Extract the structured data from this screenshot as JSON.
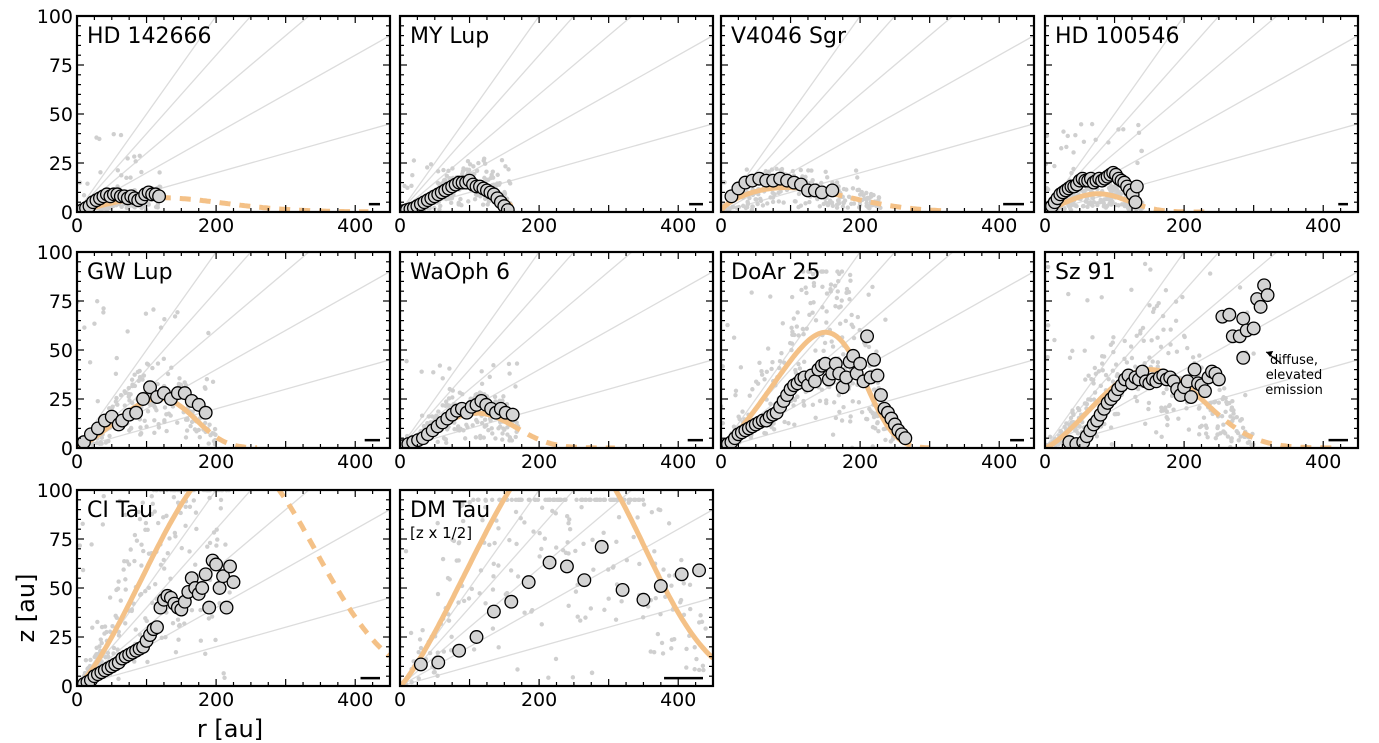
{
  "figure": {
    "xlabel": "r [au]",
    "ylabel": "z [au]",
    "x_ticks": [
      0,
      200,
      400
    ],
    "y_ticks": [
      0,
      25,
      50,
      75,
      100
    ],
    "xlim": [
      0,
      450
    ],
    "ylim": [
      0,
      100
    ],
    "grid": false,
    "reference_line_slopes": [
      0.1,
      0.2,
      0.3,
      0.4,
      0.5
    ]
  },
  "colors": {
    "fit": "#f4c187",
    "points_fill": "#d4d4d4",
    "background_points": "#cfcfcf",
    "reference_lines": "#dcdcdc"
  },
  "annotations": {
    "sz91_arrow_text": [
      "diffuse,",
      "elevated",
      "emission"
    ]
  },
  "chart_data": [
    {
      "type": "scatter",
      "name": "HD 142666",
      "note": "",
      "scalebar_au": 16,
      "fit": {
        "z0": 10,
        "phi": 1.0,
        "Rtaper": 170,
        "psi": 2.0,
        "solid_max_r": 120,
        "dashed_max_r": 420
      },
      "points": [
        [
          8,
          1
        ],
        [
          13,
          2
        ],
        [
          18,
          3
        ],
        [
          23,
          5
        ],
        [
          28,
          6
        ],
        [
          33,
          7
        ],
        [
          38,
          8
        ],
        [
          43,
          9
        ],
        [
          48,
          8
        ],
        [
          53,
          9
        ],
        [
          58,
          9
        ],
        [
          63,
          8
        ],
        [
          68,
          8
        ],
        [
          73,
          7
        ],
        [
          78,
          8
        ],
        [
          83,
          7
        ],
        [
          88,
          6
        ],
        [
          93,
          7
        ],
        [
          98,
          9
        ],
        [
          103,
          10
        ],
        [
          108,
          9
        ],
        [
          113,
          9
        ],
        [
          118,
          8
        ]
      ],
      "background": {
        "r_max": 120,
        "z_max": 40,
        "count": 160,
        "seed": 11
      }
    },
    {
      "type": "scatter",
      "name": "MY Lup",
      "note": "",
      "scalebar_au": 20,
      "fit": {
        "z0": 17,
        "phi": 1.2,
        "Rtaper": 140,
        "psi": 6.0,
        "solid_max_r": 160,
        "dashed_max_r": 160
      },
      "points": [
        [
          5,
          0.5
        ],
        [
          10,
          1
        ],
        [
          15,
          1.5
        ],
        [
          20,
          2
        ],
        [
          25,
          3
        ],
        [
          30,
          4
        ],
        [
          35,
          5
        ],
        [
          40,
          6
        ],
        [
          45,
          7
        ],
        [
          50,
          8
        ],
        [
          55,
          9
        ],
        [
          60,
          10
        ],
        [
          65,
          11
        ],
        [
          70,
          12
        ],
        [
          75,
          13
        ],
        [
          80,
          14
        ],
        [
          85,
          15
        ],
        [
          90,
          15
        ],
        [
          95,
          15
        ],
        [
          100,
          16
        ],
        [
          105,
          14
        ],
        [
          110,
          13
        ],
        [
          115,
          13
        ],
        [
          120,
          12
        ],
        [
          125,
          11
        ],
        [
          130,
          10
        ],
        [
          135,
          9
        ],
        [
          140,
          7
        ],
        [
          145,
          5
        ],
        [
          150,
          3
        ],
        [
          155,
          1
        ]
      ],
      "background": {
        "r_max": 160,
        "z_max": 30,
        "count": 220,
        "seed": 21
      }
    },
    {
      "type": "scatter",
      "name": "V4046 Sgr",
      "note": "",
      "scalebar_au": 30,
      "fit": {
        "z0": 17,
        "phi": 0.6,
        "Rtaper": 170,
        "psi": 2.2,
        "solid_max_r": 160,
        "dashed_max_r": 330
      },
      "points": [
        [
          15,
          8
        ],
        [
          25,
          12
        ],
        [
          35,
          15
        ],
        [
          45,
          16
        ],
        [
          55,
          17
        ],
        [
          65,
          16
        ],
        [
          75,
          16
        ],
        [
          85,
          17
        ],
        [
          95,
          16
        ],
        [
          105,
          15
        ],
        [
          115,
          14
        ],
        [
          125,
          11
        ],
        [
          135,
          11
        ],
        [
          145,
          10
        ],
        [
          160,
          11
        ]
      ],
      "background": {
        "r_max": 230,
        "z_max": 22,
        "count": 220,
        "seed": 31
      }
    },
    {
      "type": "scatter",
      "name": "HD 100546",
      "note": "",
      "scalebar_au": 14,
      "fit": {
        "z0": 17,
        "phi": 1.0,
        "Rtaper": 110,
        "psi": 3.0,
        "solid_max_r": 130,
        "dashed_max_r": 230
      },
      "points": [
        [
          6,
          1
        ],
        [
          10,
          3
        ],
        [
          14,
          5
        ],
        [
          18,
          7
        ],
        [
          22,
          9
        ],
        [
          26,
          10
        ],
        [
          30,
          11
        ],
        [
          34,
          12
        ],
        [
          38,
          13
        ],
        [
          42,
          13
        ],
        [
          46,
          14
        ],
        [
          50,
          16
        ],
        [
          54,
          17
        ],
        [
          58,
          16
        ],
        [
          62,
          16
        ],
        [
          66,
          17
        ],
        [
          70,
          15
        ],
        [
          74,
          16
        ],
        [
          78,
          17
        ],
        [
          82,
          16
        ],
        [
          86,
          17
        ],
        [
          90,
          18
        ],
        [
          94,
          19
        ],
        [
          98,
          20
        ],
        [
          102,
          19
        ],
        [
          106,
          17
        ],
        [
          110,
          16
        ],
        [
          114,
          15
        ],
        [
          118,
          13
        ],
        [
          122,
          11
        ],
        [
          126,
          9
        ],
        [
          130,
          5
        ],
        [
          132,
          13
        ]
      ],
      "background": {
        "r_max": 140,
        "z_max": 45,
        "count": 260,
        "seed": 41
      }
    },
    {
      "type": "scatter",
      "name": "GW Lup",
      "note": "",
      "scalebar_au": 22,
      "fit": {
        "z0": 28,
        "phi": 1.2,
        "Rtaper": 160,
        "psi": 4.0,
        "solid_max_r": 180,
        "dashed_max_r": 260
      },
      "points": [
        [
          10,
          3
        ],
        [
          20,
          7
        ],
        [
          30,
          10
        ],
        [
          40,
          14
        ],
        [
          50,
          16
        ],
        [
          60,
          12
        ],
        [
          65,
          14
        ],
        [
          75,
          17
        ],
        [
          85,
          18
        ],
        [
          95,
          25
        ],
        [
          105,
          31
        ],
        [
          115,
          26
        ],
        [
          125,
          28
        ],
        [
          135,
          25
        ],
        [
          145,
          28
        ],
        [
          155,
          28
        ],
        [
          165,
          24
        ],
        [
          175,
          22
        ],
        [
          185,
          18
        ]
      ],
      "background": {
        "r_max": 200,
        "z_max": 75,
        "count": 220,
        "seed": 51
      }
    },
    {
      "type": "scatter",
      "name": "WaOph 6",
      "note": "",
      "scalebar_au": 22,
      "fit": {
        "z0": 23,
        "phi": 1.2,
        "Rtaper": 150,
        "psi": 3.2,
        "solid_max_r": 160,
        "dashed_max_r": 310
      },
      "points": [
        [
          5,
          1
        ],
        [
          12,
          2
        ],
        [
          19,
          3
        ],
        [
          26,
          4
        ],
        [
          33,
          5
        ],
        [
          40,
          7
        ],
        [
          47,
          9
        ],
        [
          54,
          11
        ],
        [
          61,
          13
        ],
        [
          68,
          15
        ],
        [
          75,
          17
        ],
        [
          82,
          19
        ],
        [
          89,
          20
        ],
        [
          96,
          18
        ],
        [
          103,
          21
        ],
        [
          110,
          22
        ],
        [
          117,
          24
        ],
        [
          124,
          22
        ],
        [
          131,
          20
        ],
        [
          138,
          18
        ],
        [
          145,
          20
        ],
        [
          152,
          18
        ],
        [
          162,
          17
        ]
      ],
      "background": {
        "r_max": 170,
        "z_max": 45,
        "count": 200,
        "seed": 61
      }
    },
    {
      "type": "scatter",
      "name": "DoAr 25",
      "note": "",
      "scalebar_au": 20,
      "fit": {
        "z0": 46,
        "phi": 1.2,
        "Rtaper": 200,
        "psi": 5.0,
        "solid_max_r": 260,
        "dashed_max_r": 300
      },
      "points": [
        [
          5,
          1
        ],
        [
          10,
          2
        ],
        [
          15,
          3
        ],
        [
          20,
          5
        ],
        [
          25,
          7
        ],
        [
          30,
          8
        ],
        [
          35,
          9
        ],
        [
          40,
          10
        ],
        [
          45,
          11
        ],
        [
          50,
          12
        ],
        [
          55,
          13
        ],
        [
          60,
          14
        ],
        [
          65,
          14
        ],
        [
          70,
          16
        ],
        [
          75,
          17
        ],
        [
          80,
          18
        ],
        [
          85,
          21
        ],
        [
          90,
          24
        ],
        [
          95,
          27
        ],
        [
          100,
          30
        ],
        [
          105,
          32
        ],
        [
          110,
          33
        ],
        [
          115,
          35
        ],
        [
          120,
          36
        ],
        [
          125,
          32
        ],
        [
          130,
          37
        ],
        [
          135,
          34
        ],
        [
          140,
          40
        ],
        [
          145,
          42
        ],
        [
          150,
          43
        ],
        [
          155,
          35
        ],
        [
          160,
          38
        ],
        [
          165,
          43
        ],
        [
          170,
          38
        ],
        [
          175,
          31
        ],
        [
          180,
          36
        ],
        [
          185,
          44
        ],
        [
          190,
          47
        ],
        [
          195,
          38
        ],
        [
          200,
          43
        ],
        [
          205,
          34
        ],
        [
          210,
          57
        ],
        [
          215,
          36
        ],
        [
          220,
          45
        ],
        [
          225,
          37
        ],
        [
          230,
          27
        ],
        [
          235,
          20
        ],
        [
          240,
          18
        ],
        [
          245,
          15
        ],
        [
          250,
          12
        ],
        [
          255,
          9
        ],
        [
          260,
          7
        ],
        [
          265,
          5
        ]
      ],
      "background": {
        "r_max": 250,
        "z_max": 90,
        "count": 280,
        "seed": 71
      }
    },
    {
      "type": "scatter",
      "name": "Sz 91",
      "note": "",
      "scalebar_au": 28,
      "fit": {
        "z0": 36,
        "phi": 1.3,
        "Rtaper": 200,
        "psi": 3.0,
        "solid_max_r": 240,
        "dashed_max_r": 420
      },
      "points": [
        [
          35,
          3
        ],
        [
          45,
          2
        ],
        [
          55,
          3
        ],
        [
          60,
          6
        ],
        [
          65,
          9
        ],
        [
          70,
          12
        ],
        [
          75,
          14
        ],
        [
          80,
          17
        ],
        [
          85,
          20
        ],
        [
          90,
          23
        ],
        [
          95,
          25
        ],
        [
          100,
          27
        ],
        [
          105,
          30
        ],
        [
          110,
          32
        ],
        [
          115,
          35
        ],
        [
          120,
          37
        ],
        [
          125,
          33
        ],
        [
          130,
          36
        ],
        [
          135,
          35
        ],
        [
          140,
          39
        ],
        [
          145,
          34
        ],
        [
          150,
          33
        ],
        [
          155,
          35
        ],
        [
          160,
          34
        ],
        [
          165,
          36
        ],
        [
          170,
          37
        ],
        [
          175,
          35
        ],
        [
          180,
          36
        ],
        [
          185,
          34
        ],
        [
          190,
          30
        ],
        [
          195,
          27
        ],
        [
          200,
          31
        ],
        [
          205,
          34
        ],
        [
          210,
          26
        ],
        [
          215,
          40
        ],
        [
          220,
          33
        ],
        [
          225,
          32
        ],
        [
          230,
          29
        ],
        [
          235,
          36
        ],
        [
          240,
          39
        ],
        [
          245,
          38
        ],
        [
          250,
          35
        ],
        [
          255,
          67
        ],
        [
          265,
          68
        ],
        [
          270,
          57
        ],
        [
          280,
          57
        ],
        [
          285,
          66
        ],
        [
          290,
          60
        ],
        [
          300,
          61
        ],
        [
          305,
          76
        ],
        [
          310,
          72
        ],
        [
          315,
          83
        ],
        [
          320,
          78
        ],
        [
          285,
          46
        ]
      ],
      "background": {
        "r_max": 300,
        "z_max": 95,
        "count": 300,
        "seed": 81
      }
    },
    {
      "type": "scatter",
      "name": "CI Tau",
      "note": "",
      "scalebar_au": 28,
      "fit": {
        "z0": 62,
        "phi": 1.3,
        "Rtaper": 300,
        "psi": 3.0,
        "solid_max_r": 220,
        "dashed_max_r": 450
      },
      "points": [
        [
          10,
          1
        ],
        [
          15,
          2
        ],
        [
          20,
          3
        ],
        [
          25,
          5
        ],
        [
          30,
          6
        ],
        [
          35,
          7
        ],
        [
          40,
          8
        ],
        [
          45,
          9
        ],
        [
          50,
          10
        ],
        [
          55,
          11
        ],
        [
          60,
          12
        ],
        [
          65,
          14
        ],
        [
          70,
          15
        ],
        [
          75,
          16
        ],
        [
          80,
          17
        ],
        [
          85,
          18
        ],
        [
          90,
          19
        ],
        [
          95,
          20
        ],
        [
          100,
          23
        ],
        [
          105,
          26
        ],
        [
          110,
          29
        ],
        [
          115,
          30
        ],
        [
          120,
          40
        ],
        [
          125,
          44
        ],
        [
          130,
          46
        ],
        [
          135,
          45
        ],
        [
          140,
          42
        ],
        [
          145,
          40
        ],
        [
          150,
          39
        ],
        [
          155,
          43
        ],
        [
          160,
          48
        ],
        [
          165,
          55
        ],
        [
          170,
          50
        ],
        [
          175,
          47
        ],
        [
          180,
          50
        ],
        [
          185,
          57
        ],
        [
          190,
          40
        ],
        [
          195,
          64
        ],
        [
          200,
          62
        ],
        [
          205,
          50
        ],
        [
          210,
          56
        ],
        [
          215,
          40
        ],
        [
          220,
          61
        ],
        [
          225,
          53
        ]
      ],
      "background": {
        "r_max": 220,
        "z_max": 100,
        "count": 260,
        "seed": 91
      }
    },
    {
      "type": "scatter",
      "name": "DM Tau",
      "note": "[z x 1/2]",
      "scalebar_au": 56,
      "fit": {
        "z0": 63,
        "phi": 1.2,
        "Rtaper": 320,
        "psi": 3.5,
        "solid_max_r": 450,
        "dashed_max_r": 450
      },
      "points": [
        [
          30,
          11
        ],
        [
          55,
          12
        ],
        [
          85,
          18
        ],
        [
          110,
          25
        ],
        [
          135,
          38
        ],
        [
          160,
          43
        ],
        [
          185,
          53
        ],
        [
          215,
          63
        ],
        [
          240,
          61
        ],
        [
          265,
          54
        ],
        [
          290,
          71
        ],
        [
          320,
          49
        ],
        [
          350,
          44
        ],
        [
          375,
          51
        ],
        [
          405,
          57
        ],
        [
          430,
          59
        ]
      ],
      "background": {
        "r_max": 440,
        "z_max": 95,
        "count": 280,
        "seed": 101
      }
    }
  ]
}
